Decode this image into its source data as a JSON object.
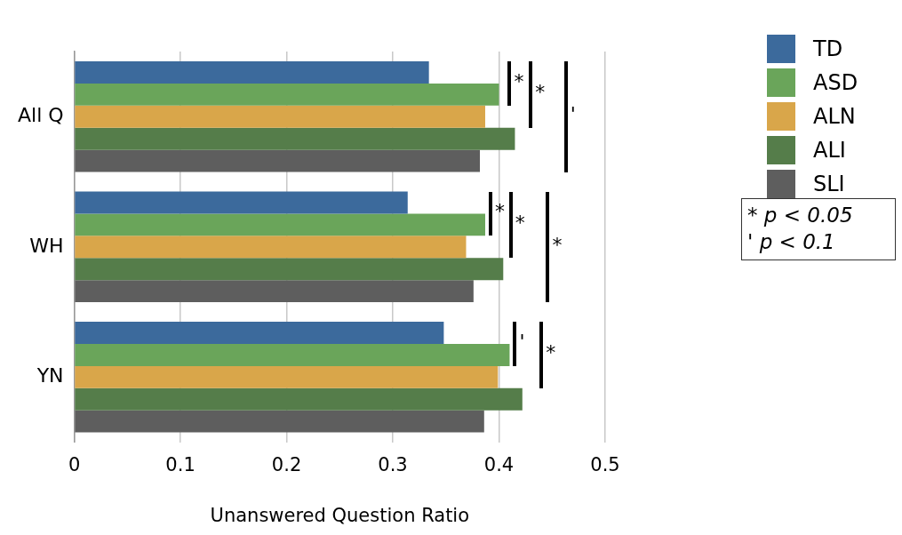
{
  "chart_data": {
    "type": "bar",
    "orientation": "horizontal",
    "xlabel": "Unanswered Question Ratio",
    "categories": [
      "All Q",
      "WH",
      "YN"
    ],
    "series": [
      {
        "name": "TD",
        "color": "#3c6a9c",
        "values": [
          0.334,
          0.314,
          0.348
        ]
      },
      {
        "name": "ASD",
        "color": "#6aa55a",
        "values": [
          0.4,
          0.387,
          0.41
        ]
      },
      {
        "name": "ALN",
        "color": "#d9a64a",
        "values": [
          0.387,
          0.369,
          0.399
        ]
      },
      {
        "name": "ALI",
        "color": "#557d4a",
        "values": [
          0.415,
          0.404,
          0.422
        ]
      },
      {
        "name": "SLI",
        "color": "#5e5e5e",
        "values": [
          0.382,
          0.376,
          0.386
        ]
      }
    ],
    "xlim": [
      0,
      0.5
    ],
    "xticks": [
      0,
      0.1,
      0.2,
      0.3,
      0.4,
      0.5
    ],
    "grid": "x",
    "legend": "right",
    "annotations": [
      "*",
      "*",
      "'",
      "*",
      "*",
      "*",
      "'",
      "*",
      "* p < 0.05",
      "' p < 0.1"
    ]
  }
}
